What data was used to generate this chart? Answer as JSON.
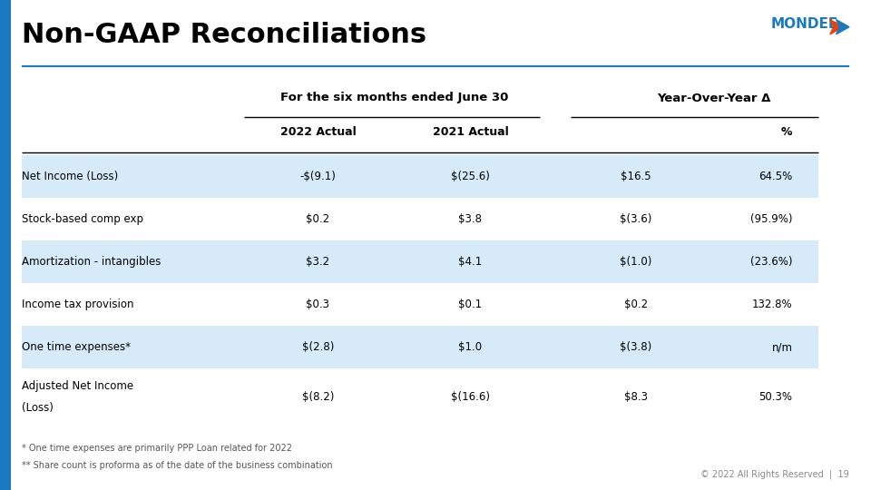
{
  "title": "Non-GAAP Reconciliations",
  "title_fontsize": 22,
  "bg_color": "#ffffff",
  "header_group1": "For the six months ended June 30",
  "header_group2": "Year-Over-Year Δ",
  "col_headers": [
    "2022 Actual",
    "2021 Actual",
    "",
    "%"
  ],
  "rows": [
    {
      "label": "Net Income (Loss)",
      "vals": [
        "-$(9.1)",
        "$(25.6)",
        "$16.5",
        "64.5%"
      ],
      "shaded": true
    },
    {
      "label": "Stock-based comp exp",
      "vals": [
        "$0.2",
        "$3.8",
        "$(3.6)",
        "(95.9%)"
      ],
      "shaded": false
    },
    {
      "label": "Amortization - intangibles",
      "vals": [
        "$3.2",
        "$4.1",
        "$(1.0)",
        "(23.6%)"
      ],
      "shaded": true
    },
    {
      "label": "Income tax provision",
      "vals": [
        "$0.3",
        "$0.1",
        "$0.2",
        "132.8%"
      ],
      "shaded": false
    },
    {
      "label": "One time expenses*",
      "vals": [
        "$(2.8)",
        "$1.0",
        "$(3.8)",
        "n/m"
      ],
      "shaded": true
    },
    {
      "label": "Adjusted Net Income\n(Loss)",
      "vals": [
        "$(8.2)",
        "$(16.6)",
        "$8.3",
        "50.3%"
      ],
      "shaded": false
    }
  ],
  "shade_color": "#d6eaf8",
  "footer_lines": [
    "* One time expenses are primarily PPP Loan related for 2022",
    "** Share count is proforma as of the date of the business combination"
  ],
  "footer_right": "© 2022 All Rights Reserved  |  19",
  "mondee_color": "#1a7abf",
  "line_color": "#1a7abf",
  "title_line_color": "#1a7abf"
}
